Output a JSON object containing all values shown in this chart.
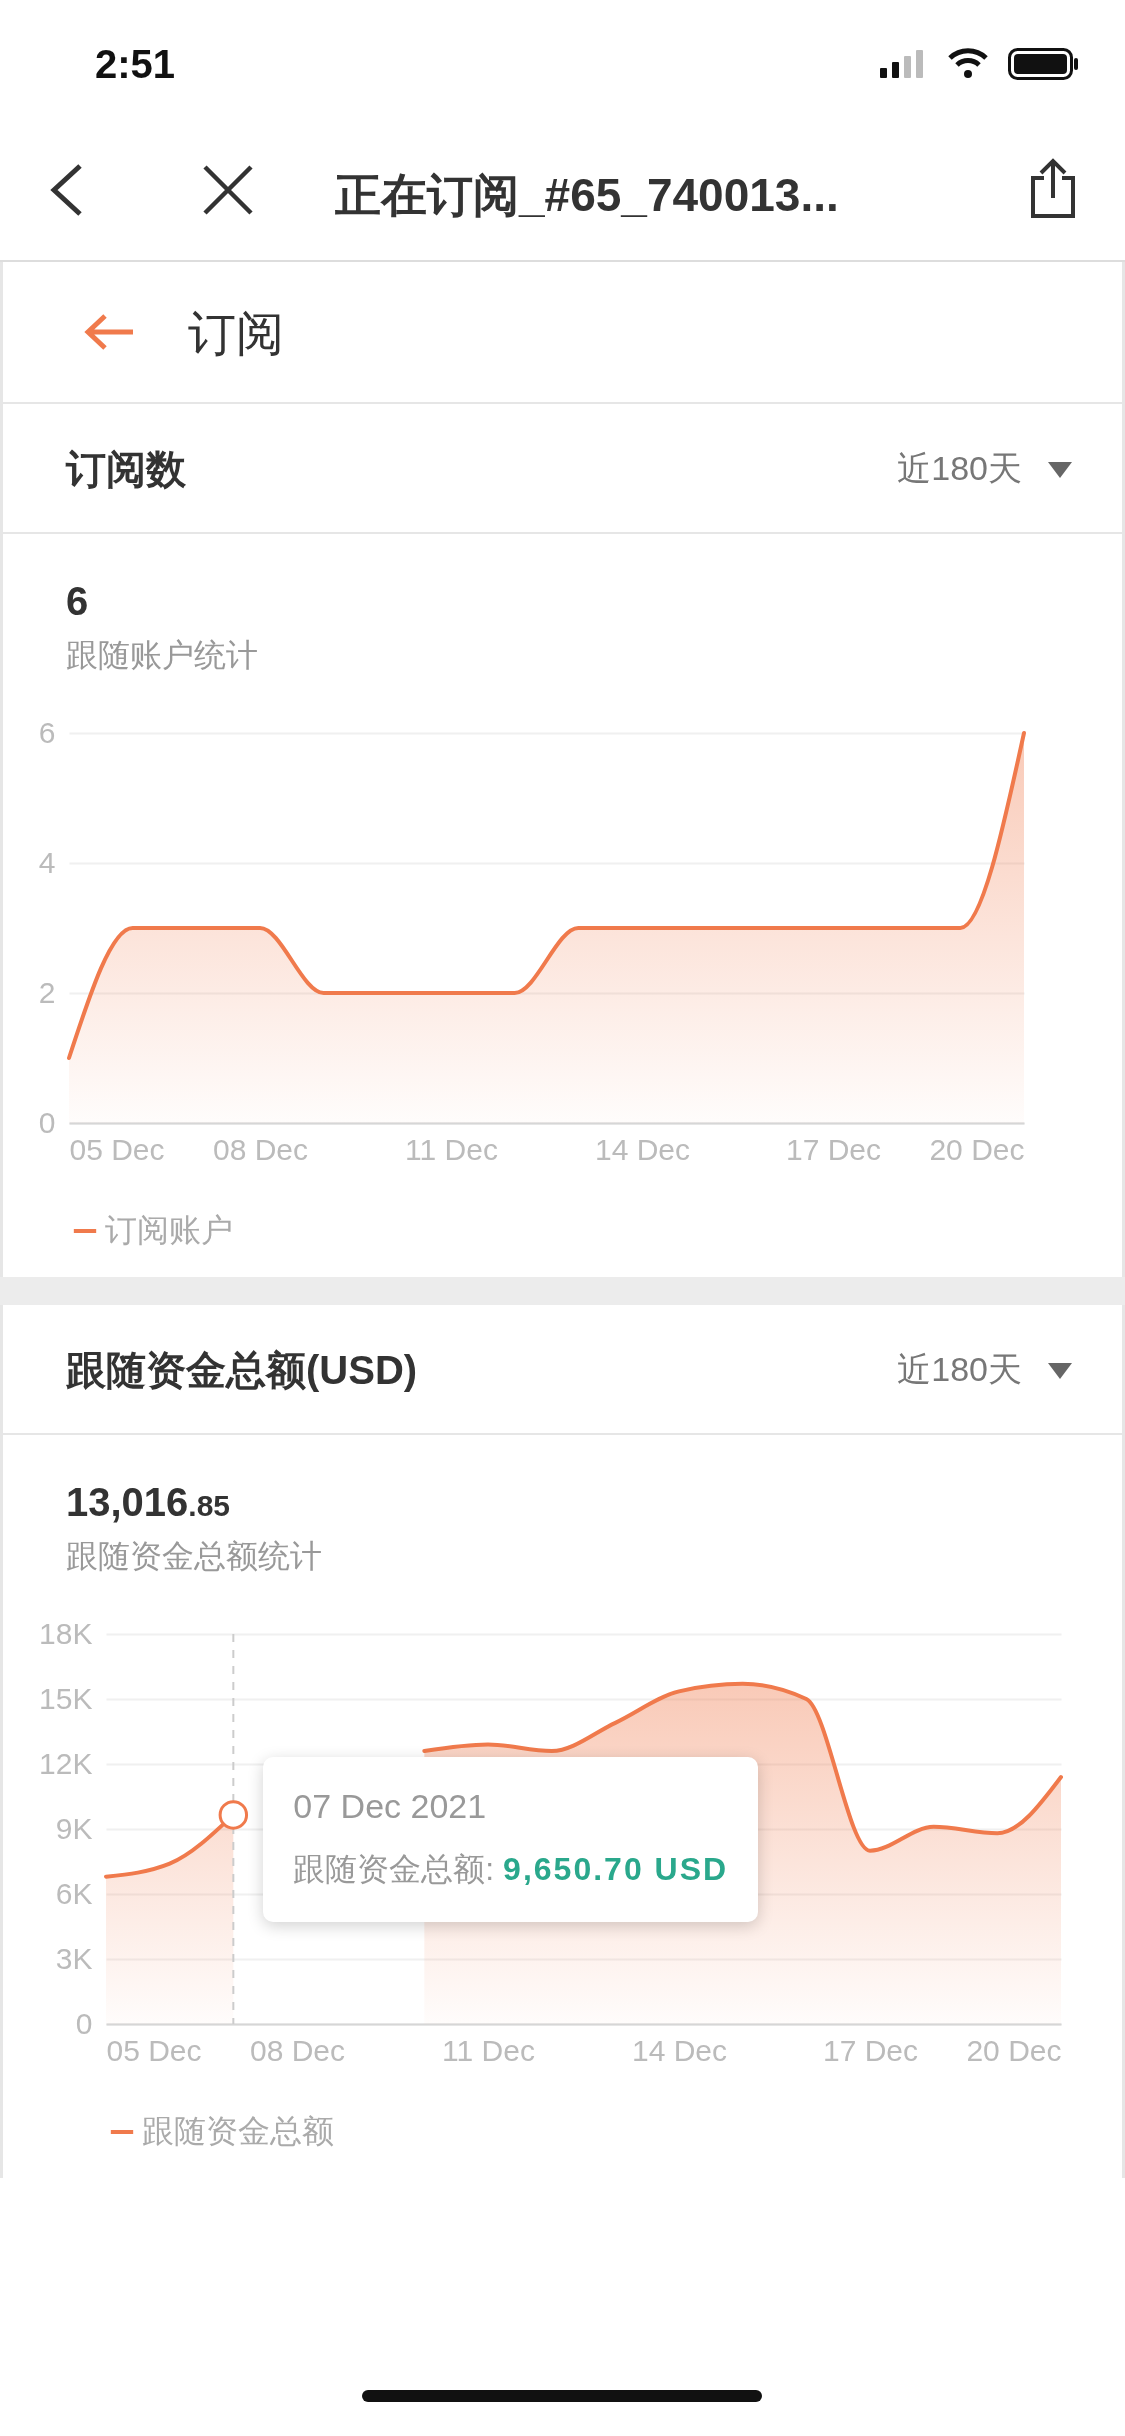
{
  "chart_data": [
    {
      "type": "area",
      "title": "订阅数",
      "subtitle": "跟随账户统计",
      "annotations": [
        "2:51",
        "正在订阅_#65_740013...",
        "订阅",
        "近180天",
        "6"
      ],
      "x": [
        "2021-12-05",
        "2021-12-06",
        "2021-12-07",
        "2021-12-08",
        "2021-12-09",
        "2021-12-10",
        "2021-12-11",
        "2021-12-12",
        "2021-12-13",
        "2021-12-14",
        "2021-12-15",
        "2021-12-16",
        "2021-12-17",
        "2021-12-18",
        "2021-12-19",
        "2021-12-20"
      ],
      "series": [
        {
          "name": "订阅账户",
          "color": "#f07a4c",
          "values": [
            1,
            3,
            3,
            3,
            2,
            2,
            2,
            2,
            3,
            3,
            3,
            3,
            3,
            3,
            3,
            6
          ]
        }
      ],
      "xlim": [
        "2021-12-05",
        "2021-12-20"
      ],
      "xticks": [
        {
          "value": "2021-12-05",
          "label": "05 Dec"
        },
        {
          "value": "2021-12-08",
          "label": "08 Dec"
        },
        {
          "value": "2021-12-11",
          "label": "11 Dec"
        },
        {
          "value": "2021-12-14",
          "label": "14 Dec"
        },
        {
          "value": "2021-12-17",
          "label": "17 Dec"
        },
        {
          "value": "2021-12-20",
          "label": "20 Dec"
        }
      ],
      "ylim": [
        0,
        6
      ],
      "yticks": [
        0,
        2,
        4,
        6
      ],
      "grid": "y",
      "legend": "bottom"
    },
    {
      "type": "area",
      "title": "跟随资金总额(USD)",
      "subtitle": "跟随资金总额统计",
      "annotations": [
        "近180天",
        "13,016.85",
        {
          "text": "07 Dec 2021",
          "x": "2021-12-07",
          "y": 9650.7
        },
        {
          "text": "跟随资金总额: 9,650.70 USD",
          "x": "2021-12-07",
          "y": 9650.7
        }
      ],
      "x": [
        "2021-12-05",
        "2021-12-06",
        "2021-12-07",
        "2021-12-08",
        "2021-12-09",
        "2021-12-10",
        "2021-12-11",
        "2021-12-12",
        "2021-12-13",
        "2021-12-14",
        "2021-12-15",
        "2021-12-16",
        "2021-12-17",
        "2021-12-18",
        "2021-12-19",
        "2021-12-20"
      ],
      "series": [
        {
          "name": "跟随资金总额",
          "color": "#f07a4c",
          "values": [
            6800,
            7400,
            9650.7,
            null,
            null,
            12600,
            12900,
            12600,
            13900,
            15350,
            15700,
            15000,
            8000,
            9100,
            8800,
            11400
          ]
        }
      ],
      "xlim": [
        "2021-12-05",
        "2021-12-20"
      ],
      "xticks": [
        {
          "value": "2021-12-05",
          "label": "05 Dec"
        },
        {
          "value": "2021-12-08",
          "label": "08 Dec"
        },
        {
          "value": "2021-12-11",
          "label": "11 Dec"
        },
        {
          "value": "2021-12-14",
          "label": "14 Dec"
        },
        {
          "value": "2021-12-17",
          "label": "17 Dec"
        },
        {
          "value": "2021-12-20",
          "label": "20 Dec"
        }
      ],
      "ylim": [
        0,
        18000
      ],
      "yticks": [
        0,
        {
          "value": 3000,
          "label": "3K"
        },
        {
          "value": 6000,
          "label": "6K"
        },
        {
          "value": 9000,
          "label": "9K"
        },
        {
          "value": 12000,
          "label": "12K"
        },
        {
          "value": 15000,
          "label": "15K"
        },
        {
          "value": 18000,
          "label": "18K"
        }
      ],
      "ref_lines": [
        {
          "axis": "x",
          "value": "2021-12-07",
          "color": "#cccccc",
          "line_style": "dashed"
        }
      ],
      "grid": "y",
      "legend": "bottom"
    }
  ]
}
